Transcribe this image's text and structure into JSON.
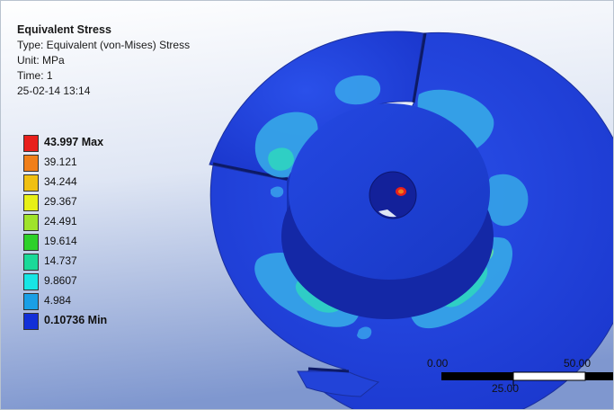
{
  "result": {
    "title": "Equivalent Stress",
    "type": "Type: Equivalent (von-Mises) Stress",
    "unit": "Unit: MPa",
    "time": "Time: 1",
    "timestamp": "25-02-14 13:14"
  },
  "legend": {
    "entries": [
      {
        "label": "43.997 Max",
        "color": "#e8201c",
        "bold": true
      },
      {
        "label": "39.121",
        "color": "#f07f1a",
        "bold": false
      },
      {
        "label": "34.244",
        "color": "#f0c012",
        "bold": false
      },
      {
        "label": "29.367",
        "color": "#e7f018",
        "bold": false
      },
      {
        "label": "24.491",
        "color": "#9fe32b",
        "bold": false
      },
      {
        "label": "19.614",
        "color": "#2dd12a",
        "bold": false
      },
      {
        "label": "14.737",
        "color": "#1ad999",
        "bold": false
      },
      {
        "label": "9.8607",
        "color": "#18e5e5",
        "bold": false
      },
      {
        "label": "4.984",
        "color": "#1a9fe6",
        "bold": false
      },
      {
        "label": "0.10736 Min",
        "color": "#1230d8",
        "bold": true
      }
    ]
  },
  "scale_bar": {
    "label_start": "0.00",
    "label_mid": "25.00",
    "label_end": "50.00"
  },
  "colors": {
    "background_top": "#ffffff",
    "background_bottom": "#7f97cf",
    "model_base": "#1f3fd8",
    "model_shadow": "#1428a6"
  }
}
